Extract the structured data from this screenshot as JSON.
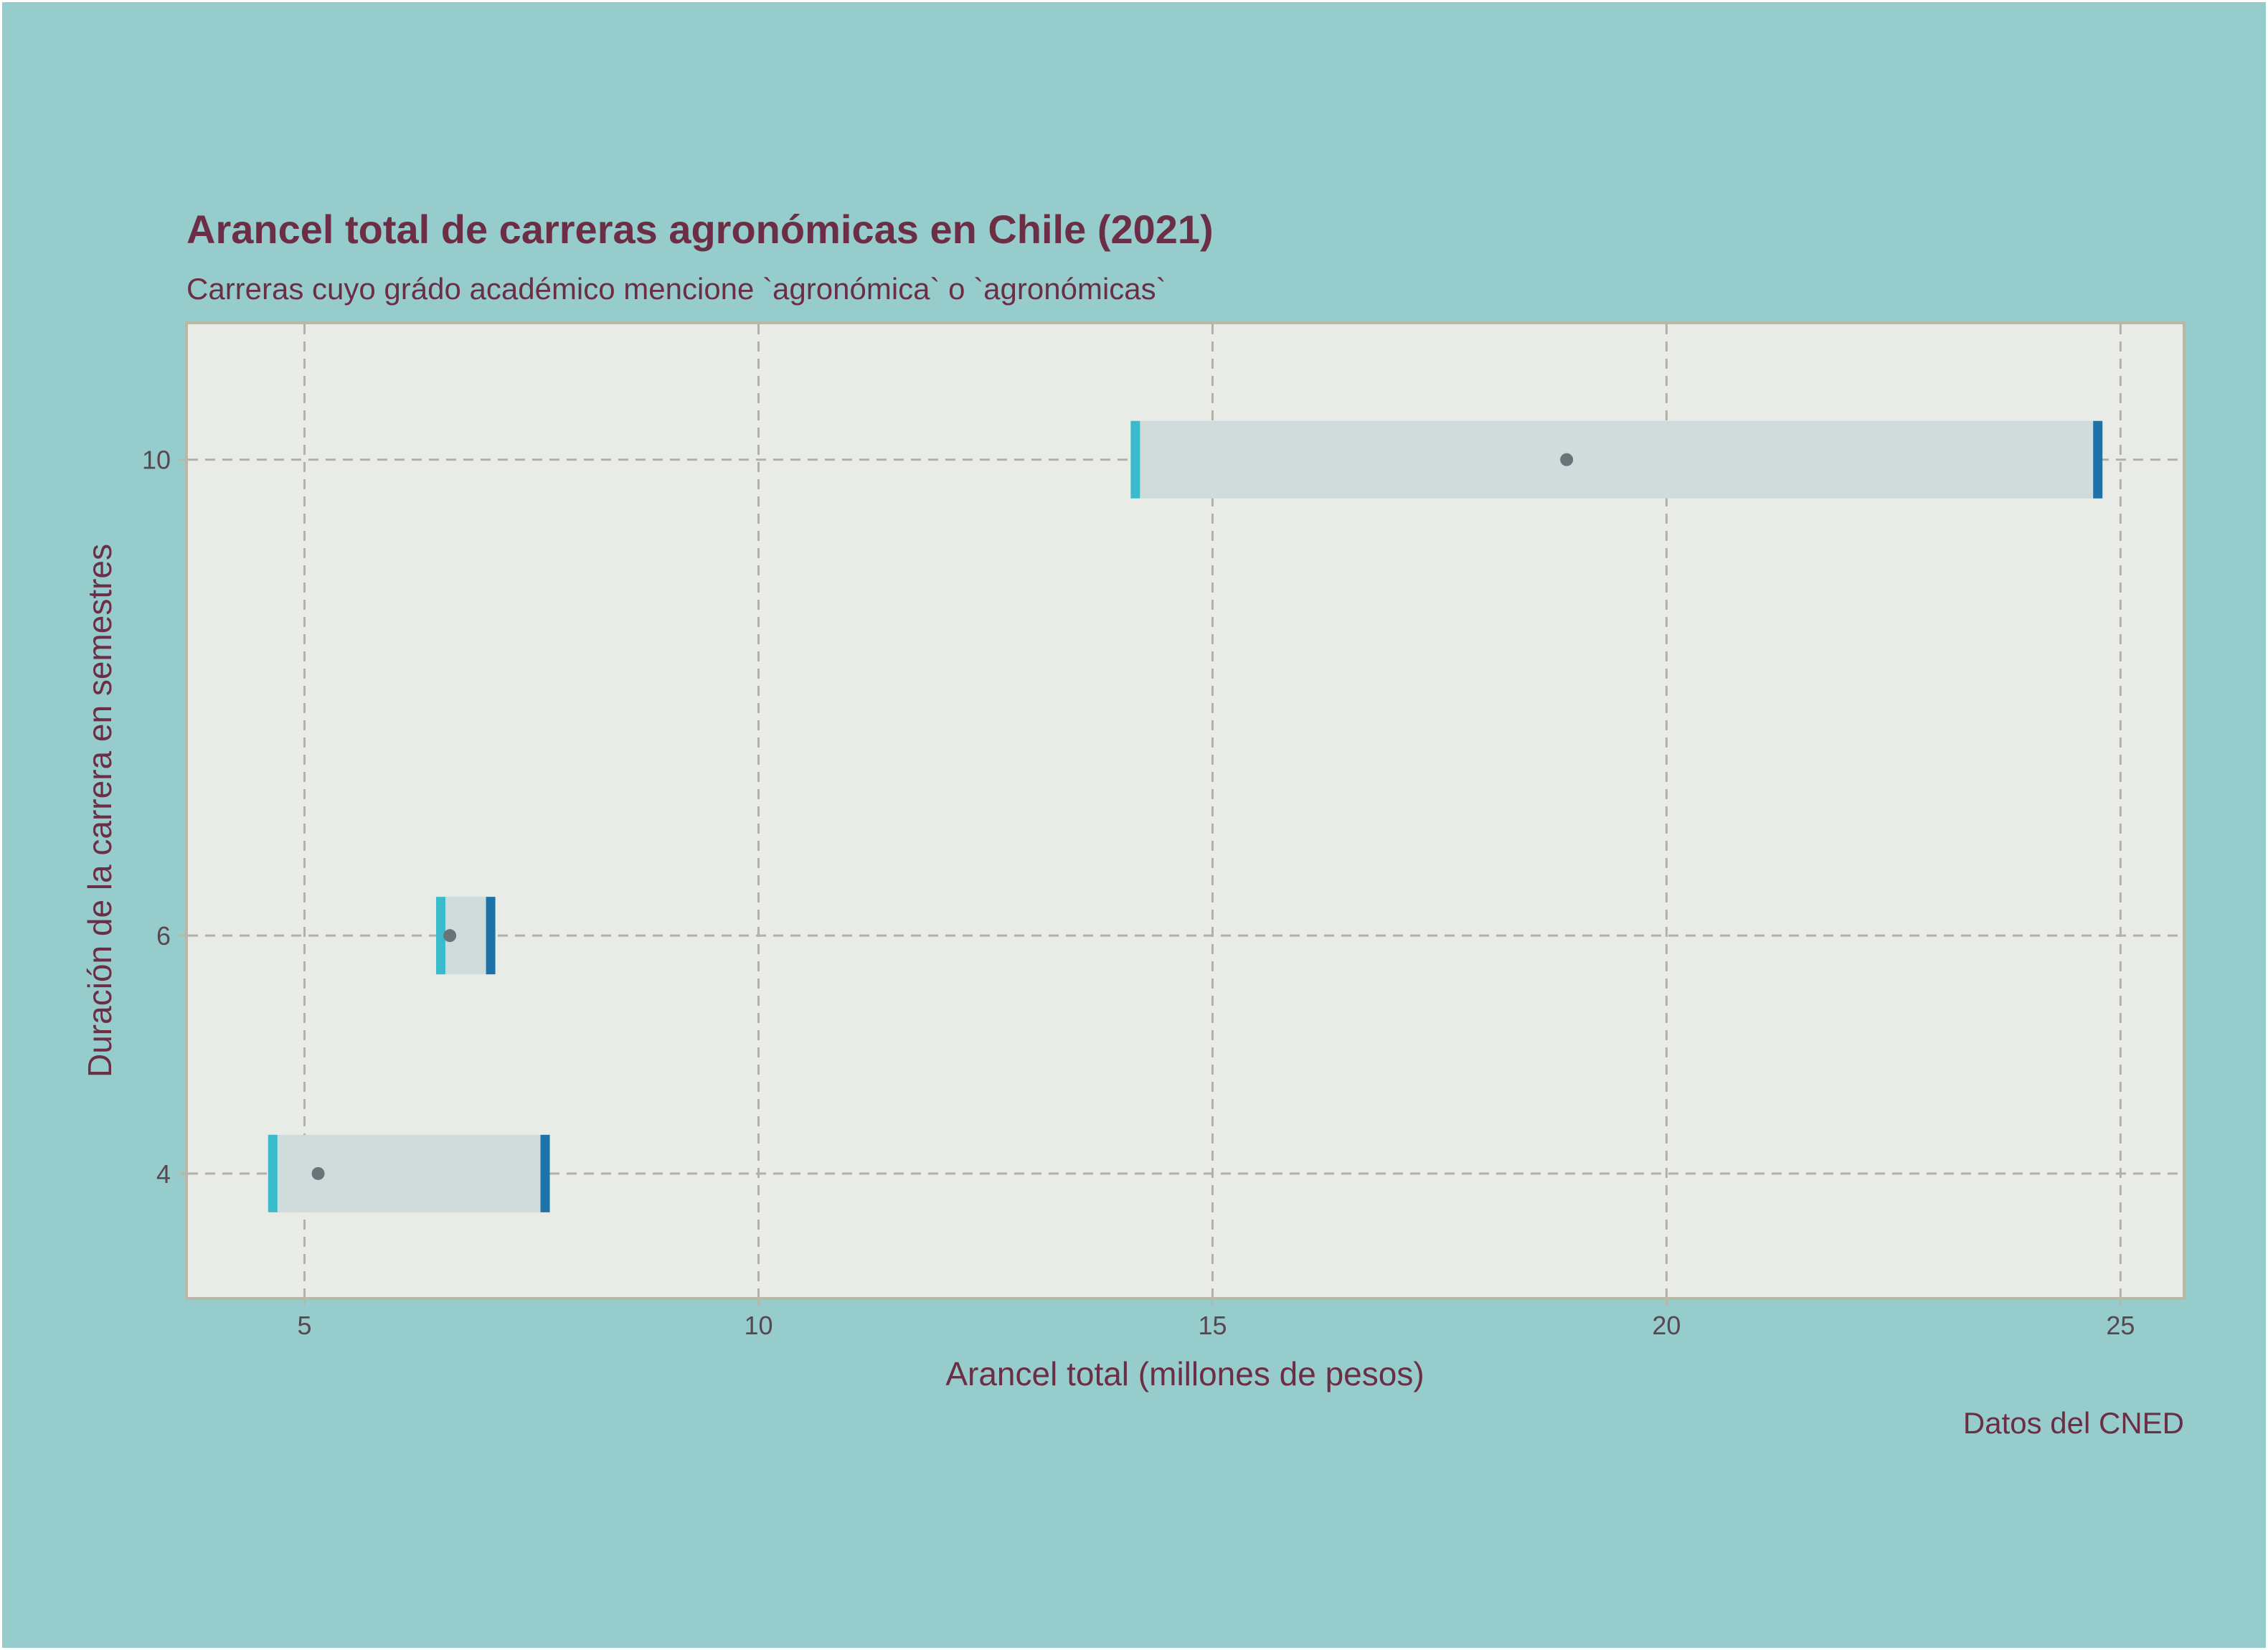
{
  "colors": {
    "page_background": "#96cdcc",
    "panel_background": "#e9ece6",
    "panel_border": "#b9b7a8",
    "gridline": "#b1b1ab",
    "text": "#6b2e45",
    "tick_text": "#5a4650",
    "band_fill": "#cfdcdb",
    "min_marker": "#3bbacc",
    "max_marker": "#1d72a7",
    "mean_point": "#6a7377"
  },
  "chart_data": {
    "type": "range",
    "title": "Arancel total de carreras agronómicas en Chile (2021)",
    "subtitle": "Carreras cuyo grádo académico mencione `agronómica` o `agronómicas`",
    "xlabel": "Arancel total (millones de pesos)",
    "ylabel": "Duración de la carrera en semestres",
    "caption": "Datos del CNED",
    "xlim": [
      3.7,
      25.7
    ],
    "ylim": [
      2.95,
      11.15
    ],
    "x_ticks": [
      5,
      10,
      15,
      20,
      25
    ],
    "x_tick_labels": [
      "5",
      "10",
      "15",
      "20",
      "25"
    ],
    "y_ticks": [
      4,
      6,
      10
    ],
    "y_tick_labels": [
      "4",
      "6",
      "10"
    ],
    "grid": true,
    "grid_style": "dashed",
    "rows": [
      {
        "semestres": 4,
        "min": 4.65,
        "max": 7.65,
        "mean": 5.15
      },
      {
        "semestres": 6,
        "min": 6.5,
        "max": 7.05,
        "mean": 6.6
      },
      {
        "semestres": 10,
        "min": 14.15,
        "max": 24.75,
        "mean": 18.9
      }
    ]
  }
}
